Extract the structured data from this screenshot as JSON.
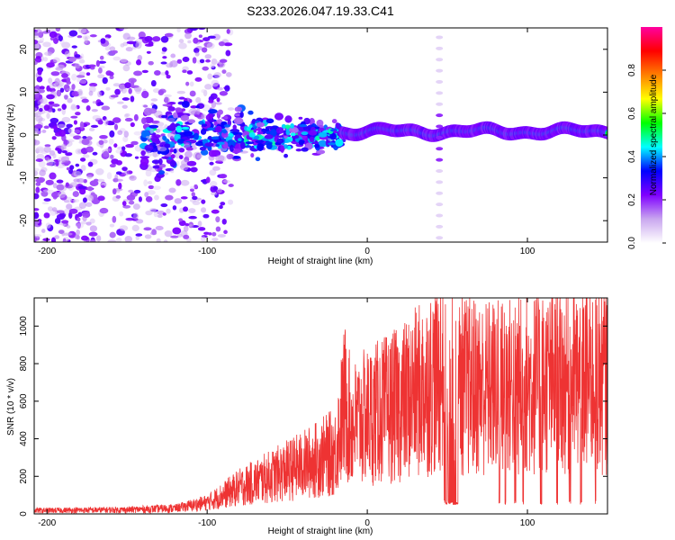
{
  "title": "S233.2026.047.19.33.C41",
  "chart_data": [
    {
      "type": "heatmap",
      "name": "spectrogram",
      "xlabel": "Height of straight line (km)",
      "ylabel": "Frequency (Hz)",
      "xlim": [
        -208,
        150
      ],
      "ylim": [
        -25,
        25
      ],
      "xticks": [
        -200,
        -100,
        0,
        100
      ],
      "yticks": [
        -20,
        -10,
        0,
        10,
        20
      ],
      "colorbar": {
        "label": "Normalized spectral amplitude",
        "range": [
          0,
          1
        ],
        "ticks": [
          0.0,
          0.2,
          0.4,
          0.6,
          0.8
        ],
        "tick_labels": [
          "0.0",
          "0.2",
          "0.4",
          "0.6",
          "0.8"
        ],
        "colors": [
          "#ffffff",
          "#c9a7ef",
          "#7f00ff",
          "#0000ff",
          "#00ffff",
          "#00ff00",
          "#ffff00",
          "#ff8000",
          "#ff0000",
          "#ff00a0"
        ]
      },
      "features": {
        "carrier_freq_hz": 0.8,
        "noise_region_x": [
          -208,
          -110
        ],
        "vertical_stripe_x": 45,
        "strong_segment_x": [
          50,
          95
        ]
      }
    },
    {
      "type": "line",
      "name": "snr",
      "xlabel": "Height of straight line (km)",
      "ylabel": "SNR (10 * v/v)",
      "xlim": [
        -208,
        150
      ],
      "ylim": [
        0,
        1150
      ],
      "xticks": [
        -200,
        -100,
        0,
        100
      ],
      "yticks": [
        0,
        200,
        400,
        600,
        800,
        1000
      ],
      "color": "#ee3333",
      "envelope": {
        "x": [
          -208,
          -150,
          -120,
          -100,
          -80,
          -60,
          -40,
          -20,
          -14,
          -10,
          0,
          20,
          40,
          48,
          50,
          60,
          80,
          100,
          120,
          150
        ],
        "y": [
          18,
          22,
          30,
          60,
          140,
          200,
          260,
          330,
          600,
          470,
          520,
          580,
          700,
          760,
          700,
          680,
          670,
          690,
          700,
          720
        ]
      },
      "dropouts": [
        {
          "x": [
            48,
            57
          ],
          "to": 60
        },
        {
          "x": [
            82,
            83
          ],
          "to": 60
        },
        {
          "x": [
            86,
            87
          ],
          "to": 60
        },
        {
          "x": [
            92,
            93
          ],
          "to": 60
        },
        {
          "x": [
            97,
            98
          ],
          "to": 60
        },
        {
          "x": [
            108,
            109
          ],
          "to": 60
        },
        {
          "x": [
            118,
            119
          ],
          "to": 60
        },
        {
          "x": [
            126,
            127
          ],
          "to": 60
        },
        {
          "x": [
            133,
            134
          ],
          "to": 60
        },
        {
          "x": [
            142,
            143
          ],
          "to": 60
        }
      ]
    }
  ]
}
